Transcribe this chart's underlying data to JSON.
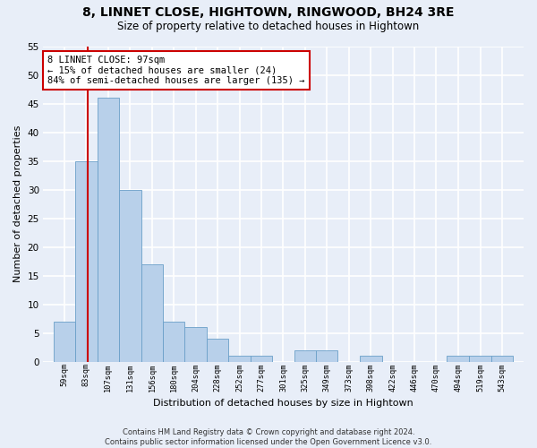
{
  "title": "8, LINNET CLOSE, HIGHTOWN, RINGWOOD, BH24 3RE",
  "subtitle": "Size of property relative to detached houses in Hightown",
  "xlabel": "Distribution of detached houses by size in Hightown",
  "ylabel": "Number of detached properties",
  "bin_labels": [
    "59sqm",
    "83sqm",
    "107sqm",
    "131sqm",
    "156sqm",
    "180sqm",
    "204sqm",
    "228sqm",
    "252sqm",
    "277sqm",
    "301sqm",
    "325sqm",
    "349sqm",
    "373sqm",
    "398sqm",
    "422sqm",
    "446sqm",
    "470sqm",
    "494sqm",
    "519sqm",
    "543sqm"
  ],
  "bin_edges": [
    59,
    83,
    107,
    131,
    156,
    180,
    204,
    228,
    252,
    277,
    301,
    325,
    349,
    373,
    398,
    422,
    446,
    470,
    494,
    519,
    543,
    567
  ],
  "values": [
    7,
    35,
    46,
    30,
    17,
    7,
    6,
    4,
    1,
    1,
    0,
    2,
    2,
    0,
    1,
    0,
    0,
    0,
    1,
    1,
    1
  ],
  "bar_color": "#b8d0ea",
  "bar_edge_color": "#6a9fc8",
  "vline_x": 97,
  "vline_color": "#cc0000",
  "annotation_text": "8 LINNET CLOSE: 97sqm\n← 15% of detached houses are smaller (24)\n84% of semi-detached houses are larger (135) →",
  "annotation_box_color": "#ffffff",
  "annotation_box_edge_color": "#cc0000",
  "ylim": [
    0,
    55
  ],
  "yticks": [
    0,
    5,
    10,
    15,
    20,
    25,
    30,
    35,
    40,
    45,
    50,
    55
  ],
  "footer": "Contains HM Land Registry data © Crown copyright and database right 2024.\nContains public sector information licensed under the Open Government Licence v3.0.",
  "bg_color": "#e8eef8",
  "grid_color": "#ffffff",
  "title_fontsize": 10,
  "subtitle_fontsize": 8.5
}
